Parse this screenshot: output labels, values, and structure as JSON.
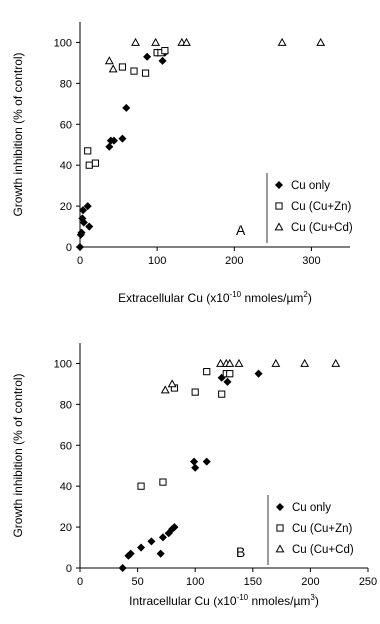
{
  "chart_data": [
    {
      "type": "scatter",
      "panel_label": "A",
      "xlabel_pre": "Extracellular Cu (x10",
      "xlabel_exp": "-10",
      "xlabel_post": " nmoles/µm",
      "xlabel_unit_exp": "2",
      "xlabel_close": ")",
      "ylabel": "Growth inhibition (% of control)",
      "xlim": [
        0,
        350
      ],
      "ylim": [
        0,
        110
      ],
      "xticks": [
        "0",
        "100",
        "200",
        "300"
      ],
      "yticks": [
        "0",
        "20",
        "40",
        "60",
        "80",
        "100"
      ],
      "grid": false,
      "legend_position": "bottom-right",
      "series": [
        {
          "name": "Cu only",
          "marker": "diamond",
          "points": [
            [
              0,
              0
            ],
            [
              1,
              6
            ],
            [
              2,
              7
            ],
            [
              3,
              14
            ],
            [
              4,
              18
            ],
            [
              5,
              12
            ],
            [
              10,
              20
            ],
            [
              12,
              10
            ],
            [
              38,
              49
            ],
            [
              40,
              52
            ],
            [
              44,
              52
            ],
            [
              55,
              53
            ],
            [
              60,
              68
            ],
            [
              87,
              93
            ],
            [
              100,
              95
            ],
            [
              107,
              91
            ],
            [
              110,
              95
            ]
          ]
        },
        {
          "name": "Cu (Cu+Zn)",
          "marker": "square",
          "points": [
            [
              10,
              47
            ],
            [
              12,
              40
            ],
            [
              20,
              41
            ],
            [
              55,
              88
            ],
            [
              70,
              86
            ],
            [
              85,
              85
            ],
            [
              100,
              95
            ],
            [
              105,
              95
            ],
            [
              110,
              96
            ]
          ]
        },
        {
          "name": "Cu (Cu+Cd)",
          "marker": "triangle",
          "points": [
            [
              38,
              91
            ],
            [
              43,
              87
            ],
            [
              72,
              100
            ],
            [
              98,
              100
            ],
            [
              132,
              100
            ],
            [
              138,
              100
            ],
            [
              262,
              100
            ],
            [
              312,
              100
            ]
          ]
        }
      ]
    },
    {
      "type": "scatter",
      "panel_label": "B",
      "xlabel_pre": "Intracellular Cu (x10",
      "xlabel_exp": "-10",
      "xlabel_post": " nmoles/µm",
      "xlabel_unit_exp": "3",
      "xlabel_close": ")",
      "ylabel": "Growth inhibition (% of control)",
      "xlim": [
        0,
        250
      ],
      "ylim": [
        0,
        110
      ],
      "xticks": [
        "0",
        "50",
        "100",
        "150",
        "200",
        "250"
      ],
      "yticks": [
        "0",
        "20",
        "40",
        "60",
        "80",
        "100"
      ],
      "grid": false,
      "legend_position": "bottom-right",
      "series": [
        {
          "name": "Cu only",
          "marker": "diamond",
          "points": [
            [
              37,
              0
            ],
            [
              42,
              6
            ],
            [
              44,
              7
            ],
            [
              53,
              10
            ],
            [
              62,
              13
            ],
            [
              70,
              7
            ],
            [
              72,
              15
            ],
            [
              77,
              17
            ],
            [
              80,
              19
            ],
            [
              82,
              20
            ],
            [
              99,
              52
            ],
            [
              100,
              49
            ],
            [
              110,
              52
            ],
            [
              123,
              93
            ],
            [
              128,
              91
            ],
            [
              155,
              95
            ]
          ]
        },
        {
          "name": "Cu (Cu+Zn)",
          "marker": "square",
          "points": [
            [
              53,
              40
            ],
            [
              72,
              42
            ],
            [
              82,
              88
            ],
            [
              100,
              86
            ],
            [
              110,
              96
            ],
            [
              123,
              85
            ],
            [
              127,
              95
            ],
            [
              130,
              95
            ]
          ]
        },
        {
          "name": "Cu (Cu+Cd)",
          "marker": "triangle",
          "points": [
            [
              74,
              87
            ],
            [
              80,
              90
            ],
            [
              122,
              100
            ],
            [
              127,
              100
            ],
            [
              130,
              100
            ],
            [
              138,
              100
            ],
            [
              170,
              100
            ],
            [
              195,
              100
            ],
            [
              222,
              100
            ]
          ]
        }
      ]
    }
  ]
}
